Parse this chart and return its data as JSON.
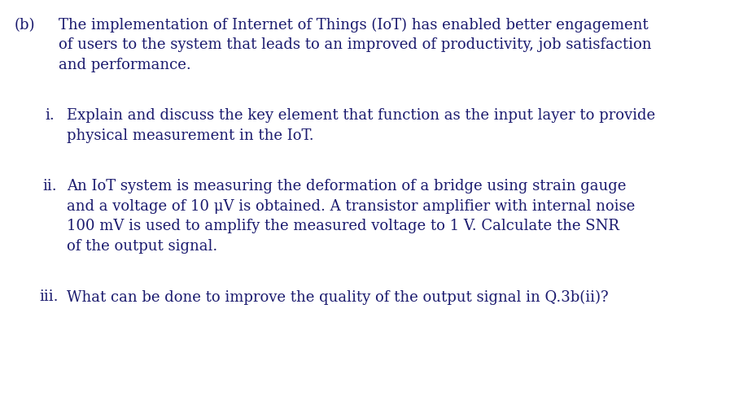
{
  "background_color": "#ffffff",
  "text_color": "#1a1a6e",
  "font_family": "DejaVu Serif",
  "font_size": 13.0,
  "label_b": "(b)",
  "para_b_l1": "The implementation of Internet of Things (IoT) has enabled better engagement",
  "para_b_l2": "of users to the system that leads to an improved of productivity, job satisfaction",
  "para_b_l3": "and performance.",
  "label_i": "i.",
  "para_i_l1": "Explain and discuss the key element that function as the input layer to provide",
  "para_i_l2": "physical measurement in the IoT.",
  "label_ii": "ii.",
  "para_ii_l1": "An IoT system is measuring the deformation of a bridge using strain gauge",
  "para_ii_l2": "and a voltage of 10 μV is obtained. A transistor amplifier with internal noise",
  "para_ii_l3": "100 mV is used to amplify the measured voltage to 1 V. Calculate the SNR",
  "para_ii_l4": "of the output signal.",
  "label_iii": "iii.",
  "para_iii_l1": "What can be done to improve the quality of the output signal in Q.3b(ii)?",
  "figwidth": 9.08,
  "figheight": 4.92,
  "dpi": 100
}
